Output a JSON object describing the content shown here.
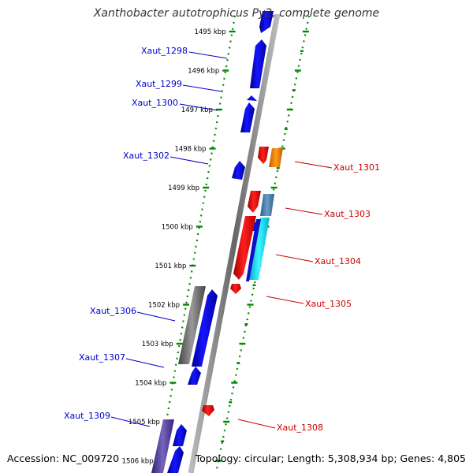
{
  "title": "Xanthobacter autotrophicus Py2, complete genome",
  "accession_text": "Accession: NC_009720",
  "summary_text": "Topology: circular; Length: 5,308,934 bp; Genes: 4,805",
  "colors": {
    "forward_gene": "#0000ee",
    "reverse_gene": "#ee0000",
    "label_forward": "#0000cc",
    "label_reverse": "#cc0000",
    "ruler_tick": "#008800",
    "backbone": "#888888",
    "orange_gene": "#ff8800",
    "steel_gene": "#4682b4",
    "cyan_gene": "#00e0ff",
    "gray_gene": "#666666",
    "slate_gene": "#554499"
  },
  "ruler_labels": [
    {
      "text": "1495 kbp"
    },
    {
      "text": "1496 kbp"
    },
    {
      "text": "1497 kbp"
    },
    {
      "text": "1498 kbp"
    },
    {
      "text": "1499 kbp"
    },
    {
      "text": "1500 kbp"
    },
    {
      "text": "1501 kbp"
    },
    {
      "text": "1502 kbp"
    },
    {
      "text": "1503 kbp"
    },
    {
      "text": "1504 kbp"
    },
    {
      "text": "1505 kbp"
    },
    {
      "text": "1506 kbp"
    }
  ],
  "forward_labels": [
    {
      "text": "Xaut_1298"
    },
    {
      "text": "Xaut_1299"
    },
    {
      "text": "Xaut_1300"
    },
    {
      "text": "Xaut_1302"
    },
    {
      "text": "Xaut_1306"
    },
    {
      "text": "Xaut_1307"
    },
    {
      "text": "Xaut_1309"
    }
  ],
  "reverse_labels": [
    {
      "text": "Xaut_1301"
    },
    {
      "text": "Xaut_1303"
    },
    {
      "text": "Xaut_1304"
    },
    {
      "text": "Xaut_1305"
    },
    {
      "text": "Xaut_1308"
    }
  ]
}
